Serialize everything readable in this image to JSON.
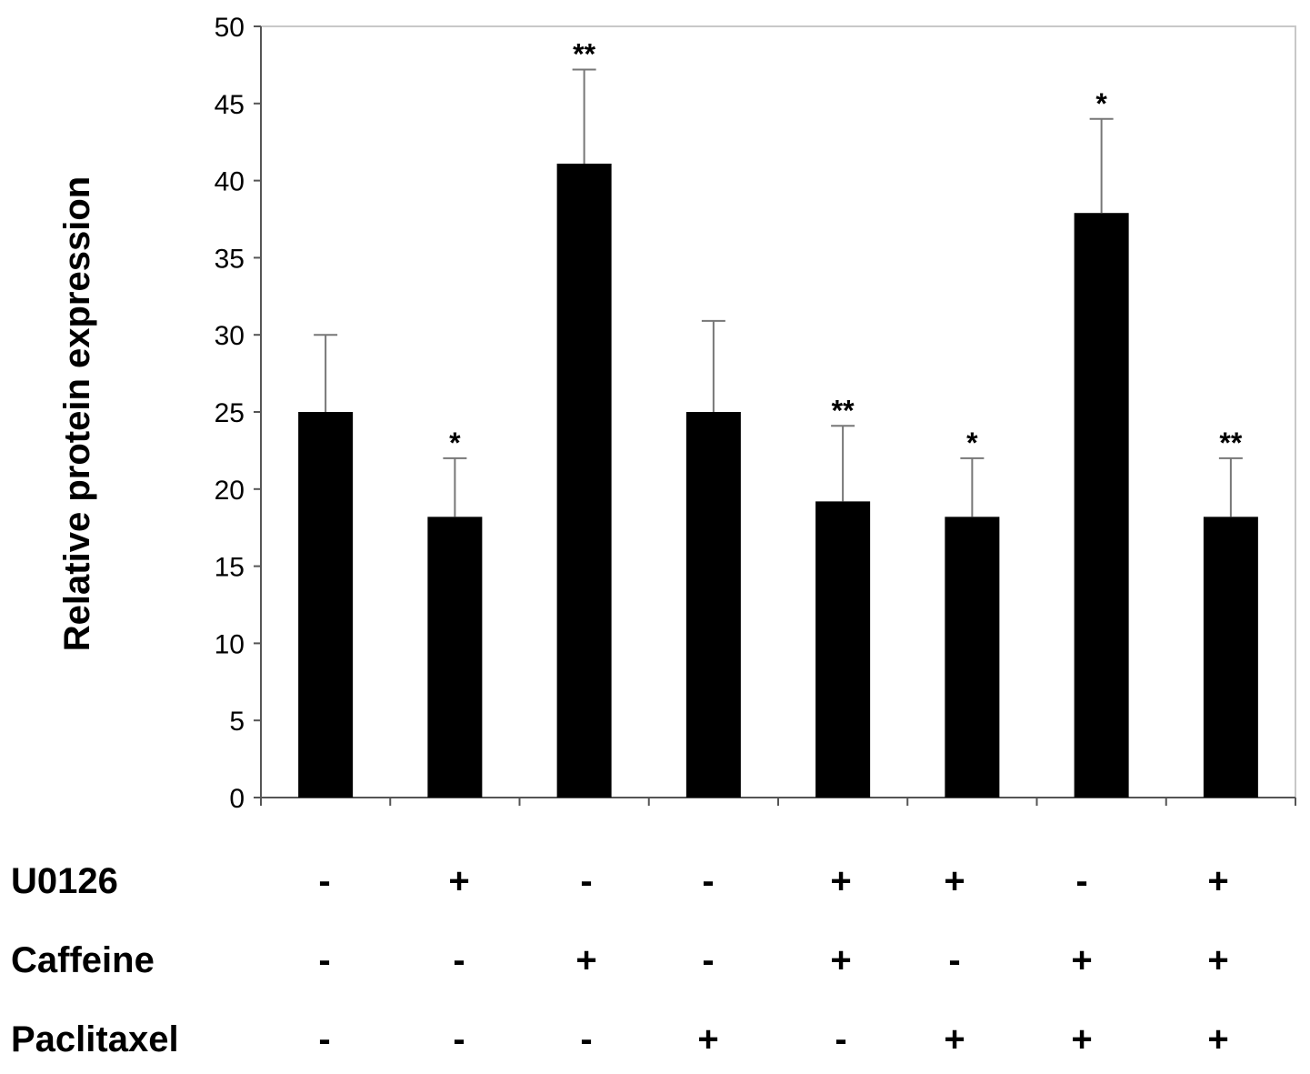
{
  "chart_data": {
    "type": "bar",
    "ylabel": "Relative protein expression",
    "xlabel": "",
    "ylim": [
      0,
      50
    ],
    "yticks": [
      0,
      5,
      10,
      15,
      20,
      25,
      30,
      35,
      40,
      45,
      50
    ],
    "grid": false,
    "bar_color": "#000000",
    "values": [
      25,
      18.2,
      41.1,
      25,
      19.2,
      18.2,
      37.9,
      18.2
    ],
    "errors": [
      5,
      3.8,
      6.1,
      5.9,
      4.9,
      3.8,
      6.1,
      3.8
    ],
    "significance": [
      "",
      "*",
      "**",
      "",
      "**",
      "*",
      "*",
      "**"
    ],
    "treatments": [
      {
        "label": "U0126",
        "signs": [
          "-",
          "+",
          "-",
          "-",
          "+",
          "+",
          "-",
          "+"
        ]
      },
      {
        "label": "Caffeine",
        "signs": [
          "-",
          "-",
          "+",
          "-",
          "+",
          "-",
          "+",
          "+"
        ]
      },
      {
        "label": "Paclitaxel",
        "signs": [
          "-",
          "-",
          "-",
          "+",
          "-",
          "+",
          "+",
          "+"
        ]
      }
    ]
  }
}
